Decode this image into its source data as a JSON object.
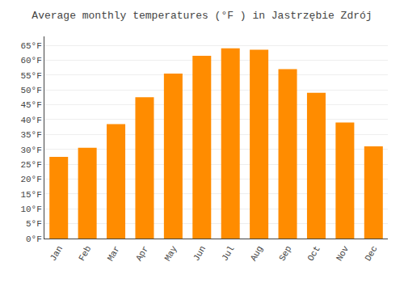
{
  "chart_data": {
    "type": "bar",
    "title": "Average monthly temperatures (°F ) in Jastrzębie Zdrój",
    "categories": [
      "Jan",
      "Feb",
      "Mar",
      "Apr",
      "May",
      "Jun",
      "Jul",
      "Aug",
      "Sep",
      "Oct",
      "Nov",
      "Dec"
    ],
    "values": [
      27.5,
      30.5,
      38.5,
      47.5,
      55.5,
      61.5,
      64.0,
      63.5,
      57.0,
      49.0,
      39.0,
      31.0
    ],
    "color": "#FF8C00",
    "ylim": [
      0,
      68
    ],
    "yticks": [
      {
        "value": 0,
        "label": "0°F"
      },
      {
        "value": 5,
        "label": "5°F"
      },
      {
        "value": 10,
        "label": "10°F"
      },
      {
        "value": 15,
        "label": "15°F"
      },
      {
        "value": 20,
        "label": "20°F"
      },
      {
        "value": 25,
        "label": "25°F"
      },
      {
        "value": 30,
        "label": "30°F"
      },
      {
        "value": 35,
        "label": "35°F"
      },
      {
        "value": 40,
        "label": "40°F"
      },
      {
        "value": 45,
        "label": "45°F"
      },
      {
        "value": 50,
        "label": "50°F"
      },
      {
        "value": 55,
        "label": "55°F"
      },
      {
        "value": 60,
        "label": "60°F"
      },
      {
        "value": 65,
        "label": "65°F"
      }
    ],
    "grid": true
  }
}
